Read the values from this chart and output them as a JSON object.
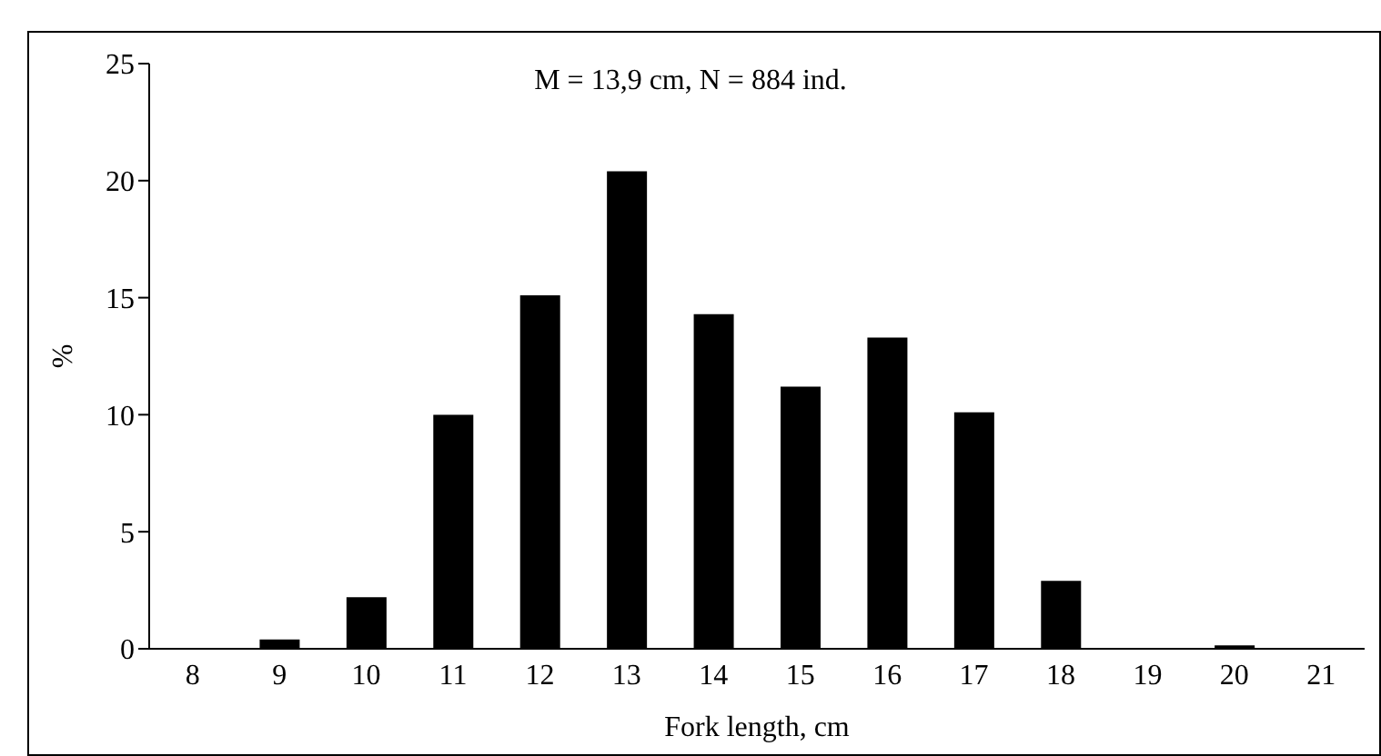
{
  "chart_data": {
    "type": "bar",
    "categories": [
      "8",
      "9",
      "10",
      "11",
      "12",
      "13",
      "14",
      "15",
      "16",
      "17",
      "18",
      "19",
      "20",
      "21"
    ],
    "values": [
      0,
      0.4,
      2.2,
      10,
      15.1,
      20.4,
      14.3,
      11.2,
      13.3,
      10.1,
      2.9,
      0,
      0.15,
      0
    ],
    "color": "#000000",
    "ylim": [
      0,
      25
    ],
    "yticks": [
      0,
      5,
      10,
      15,
      20,
      25
    ],
    "xlabel": "Fork length, cm",
    "ylabel": "%",
    "annotations": [
      "M = 13,9 cm, N = 884 ind."
    ]
  }
}
